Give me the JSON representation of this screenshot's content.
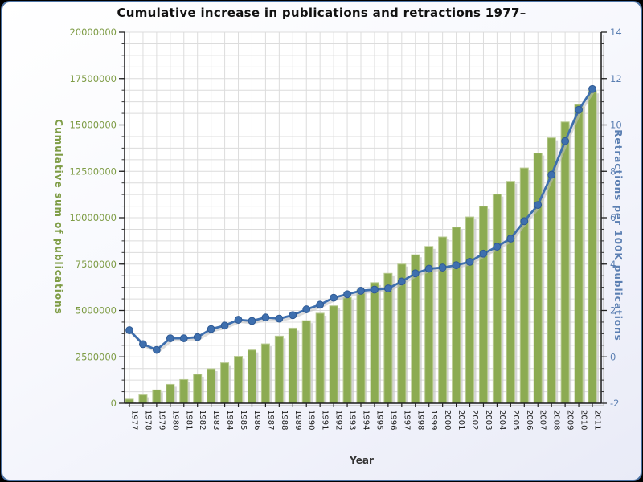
{
  "chart_data": {
    "type": "combo",
    "title": "Cumulative increase in publications and retractions 1977–",
    "xlabel": "Year",
    "categories": [
      "1977",
      "1978",
      "1979",
      "1980",
      "1981",
      "1982",
      "1983",
      "1984",
      "1985",
      "1986",
      "1987",
      "1988",
      "1989",
      "1990",
      "1991",
      "1992",
      "1993",
      "1994",
      "1995",
      "1996",
      "1997",
      "1998",
      "1999",
      "2000",
      "2001",
      "2002",
      "2003",
      "2004",
      "2005",
      "2006",
      "2007",
      "2008",
      "2009",
      "2010",
      "2011"
    ],
    "series": [
      {
        "name": "Cumulative sum of publications",
        "type": "bar",
        "axis": "left",
        "color": "#8cab52",
        "edge_color": "#b7c98f",
        "values": [
          220000,
          450000,
          720000,
          1020000,
          1280000,
          1560000,
          1860000,
          2180000,
          2530000,
          2870000,
          3200000,
          3620000,
          4050000,
          4450000,
          4850000,
          5250000,
          5700000,
          6100000,
          6500000,
          7000000,
          7500000,
          8000000,
          8450000,
          8960000,
          9490000,
          10040000,
          10620000,
          11270000,
          11960000,
          12680000,
          13480000,
          14300000,
          15160000,
          16100000,
          16830000
        ]
      },
      {
        "name": "Retractions per 100K publications",
        "type": "line",
        "axis": "right",
        "color": "#3e6fae",
        "marker_edge_color": "#2f5a94",
        "values": [
          1.15,
          0.55,
          0.3,
          0.8,
          0.8,
          0.85,
          1.2,
          1.35,
          1.6,
          1.55,
          1.7,
          1.65,
          1.8,
          2.05,
          2.25,
          2.55,
          2.7,
          2.85,
          2.9,
          2.95,
          3.25,
          3.6,
          3.8,
          3.85,
          3.95,
          4.1,
          4.45,
          4.75,
          5.1,
          5.85,
          6.55,
          7.85,
          9.3,
          10.65,
          11.55
        ]
      }
    ],
    "left_axis": {
      "label": "Cumulative sum of publications",
      "min": 0,
      "max": 20000000,
      "ticks": [
        0,
        2500000,
        5000000,
        7500000,
        10000000,
        12500000,
        15000000,
        17500000,
        20000000
      ],
      "minor_step": 625000,
      "color": "#7e9c45"
    },
    "right_axis": {
      "label": "Retractions per 100K publications",
      "min": -2,
      "max": 14,
      "ticks": [
        -2,
        0,
        2,
        4,
        6,
        8,
        10,
        12,
        14
      ],
      "minor_step": 0.5,
      "color": "#5b7fb2"
    },
    "grid": true,
    "gridline_color": "#dcdcdc",
    "legend": "none"
  }
}
